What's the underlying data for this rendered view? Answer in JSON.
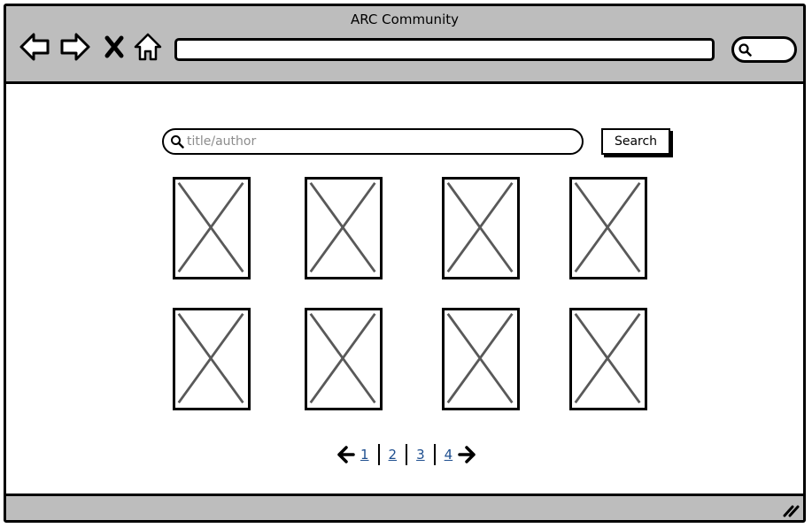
{
  "window": {
    "title": "ARC Community"
  },
  "icons": {
    "back": "arrow-left-outline",
    "forward": "arrow-right-outline",
    "stop": "x-mark",
    "home": "house-outline",
    "search": "magnifier",
    "prev": "arrow-left-bold",
    "next": "arrow-right-bold"
  },
  "search": {
    "placeholder": "title/author",
    "value": "",
    "button_label": "Search"
  },
  "gallery": {
    "item_count": 8
  },
  "pagination": {
    "pages": [
      "1",
      "2",
      "3",
      "4"
    ]
  },
  "colors": {
    "chrome": "#bdbdbd",
    "link": "#1f4f8f",
    "placeholder_cross": "#595959"
  }
}
